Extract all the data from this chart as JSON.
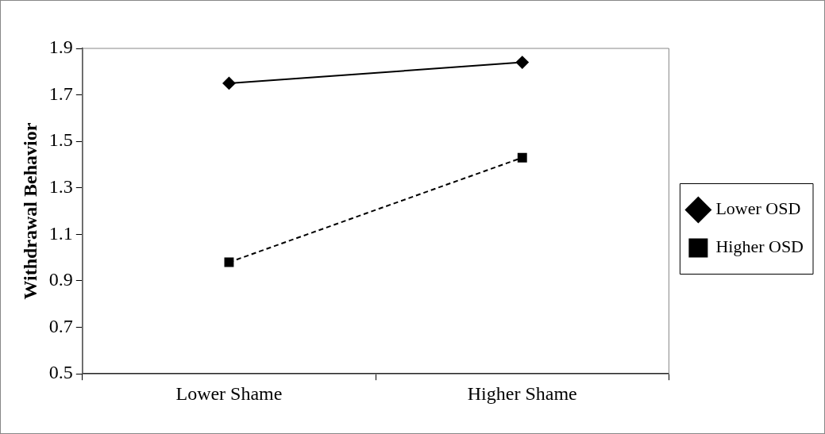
{
  "chart_data": {
    "type": "line",
    "ylabel": "Withdrawal Behavior",
    "categories": [
      "Lower Shame",
      "Higher Shame"
    ],
    "series": [
      {
        "name": "Lower OSD",
        "color": "#000000",
        "values": [
          1.75,
          1.84
        ],
        "marker": "diamond",
        "line_style": "solid"
      },
      {
        "name": "Higher OSD",
        "color": "#000000",
        "values": [
          0.98,
          1.43
        ],
        "marker": "square",
        "line_style": "dashed"
      }
    ],
    "ylim": [
      0.5,
      1.9
    ],
    "yticks": [
      0.5,
      0.7,
      0.9,
      1.1,
      1.3,
      1.5,
      1.7,
      1.9
    ],
    "grid": false,
    "legend": "right"
  }
}
